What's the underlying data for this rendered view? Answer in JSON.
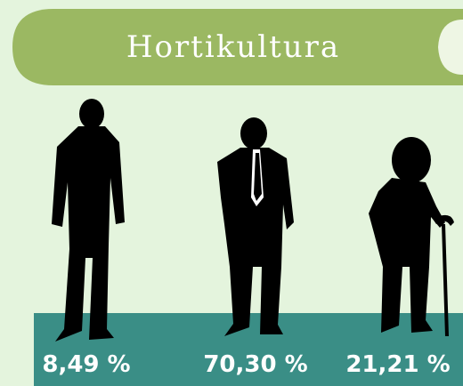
{
  "header": {
    "title": "Hortikultura"
  },
  "groups": [
    {
      "label": "8,49 %"
    },
    {
      "label": "70,30 %"
    },
    {
      "label": "21,21 %"
    }
  ]
}
